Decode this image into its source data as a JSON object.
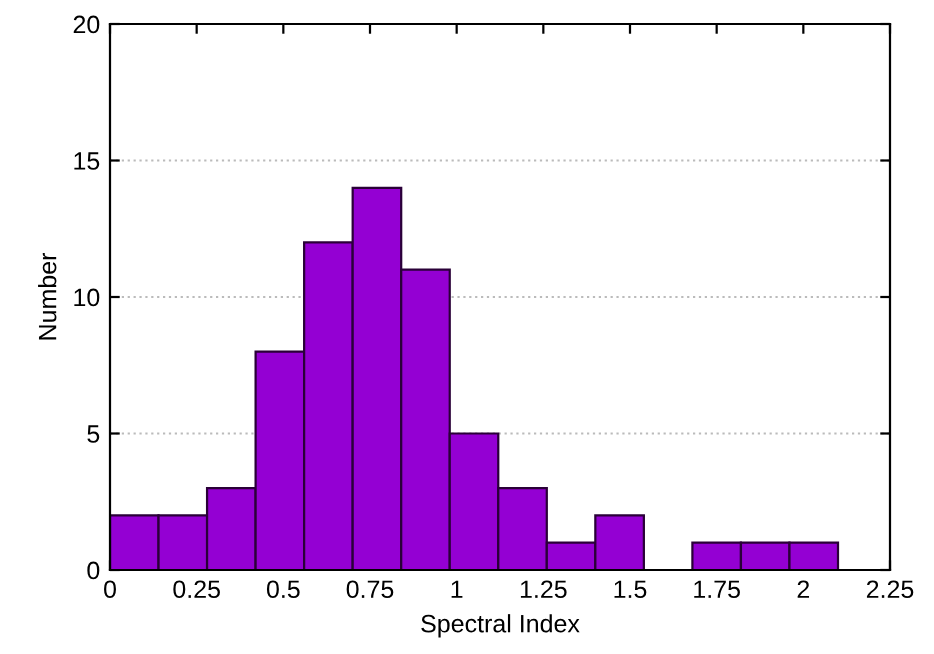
{
  "chart_data": {
    "type": "histogram",
    "xlabel": "Spectral Index",
    "ylabel": "Number",
    "bins": [
      0,
      0.14,
      0.28,
      0.42,
      0.56,
      0.7,
      0.84,
      0.98,
      1.12,
      1.26,
      1.4,
      1.54,
      1.68,
      1.82,
      1.96,
      2.1
    ],
    "values": [
      2,
      2,
      3,
      8,
      12,
      14,
      11,
      5,
      3,
      1,
      2,
      0,
      1,
      1,
      1
    ],
    "color": "#9400d3",
    "xlim": [
      0,
      2.25
    ],
    "xticks": [
      0,
      0.25,
      0.5,
      0.75,
      1,
      1.25,
      1.5,
      1.75,
      2,
      2.25
    ],
    "ylim": [
      0,
      20
    ],
    "yticks": [
      0,
      5,
      10,
      15,
      20
    ],
    "grid": "y"
  }
}
